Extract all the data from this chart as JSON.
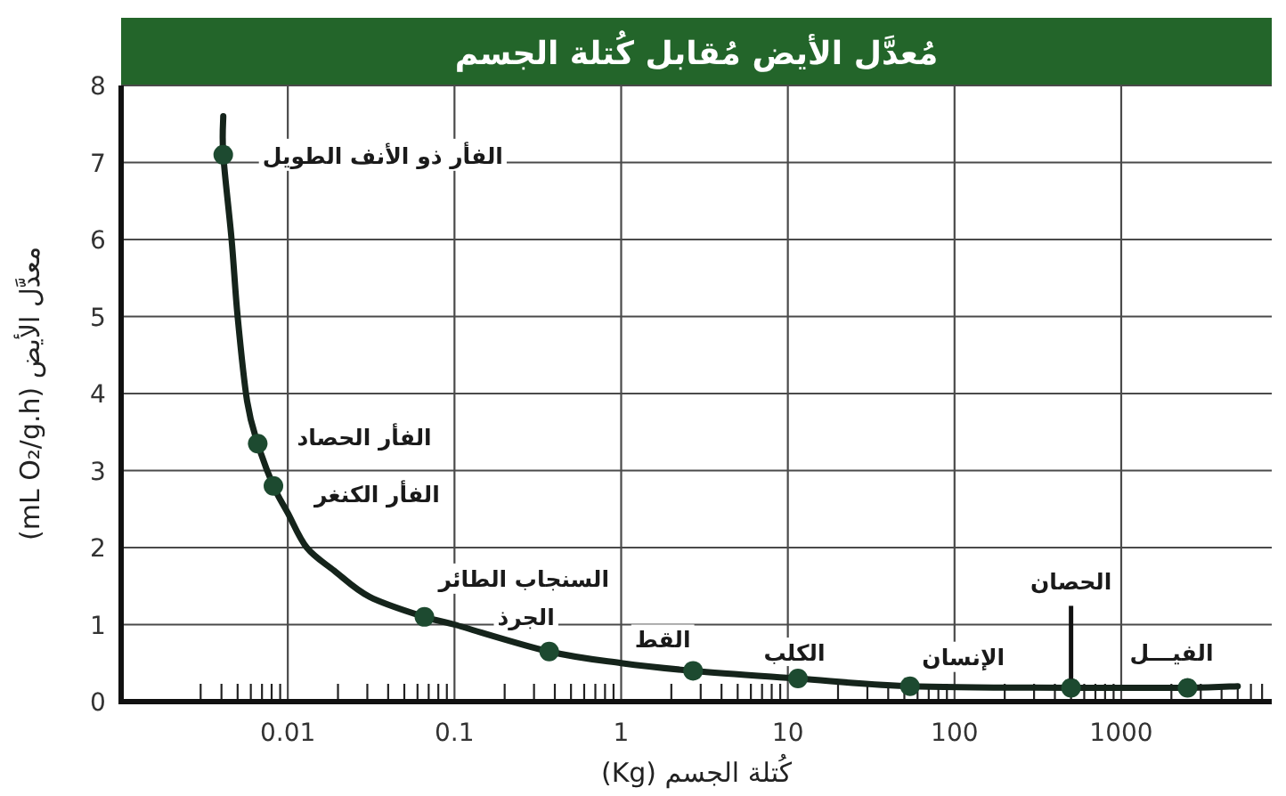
{
  "chart_data": {
    "type": "scatter",
    "title": "مُعدَّل الأيض مُقابل كُتلة الجسم",
    "xlabel": "كُتلة الجسم (Kg)",
    "ylabel": "معدَّل الأيض (mL O₂/g.h)",
    "log": "x",
    "xlim": [
      0.001,
      8000
    ],
    "xticks": [
      {
        "value": 0.003,
        "label": null
      },
      {
        "value": 0.004,
        "label": null
      },
      {
        "value": 0.005,
        "label": null
      },
      {
        "value": 0.006,
        "label": null
      },
      {
        "value": 0.007,
        "label": null
      },
      {
        "value": 0.008,
        "label": null
      },
      {
        "value": 0.009,
        "label": null
      },
      0.01,
      {
        "value": 0.02,
        "label": null
      },
      {
        "value": 0.03,
        "label": null
      },
      {
        "value": 0.04,
        "label": null
      },
      {
        "value": 0.05,
        "label": null
      },
      {
        "value": 0.06,
        "label": null
      },
      {
        "value": 0.07,
        "label": null
      },
      {
        "value": 0.08,
        "label": null
      },
      {
        "value": 0.09,
        "label": null
      },
      0.1,
      {
        "value": 0.2,
        "label": null
      },
      {
        "value": 0.3,
        "label": null
      },
      {
        "value": 0.4,
        "label": null
      },
      {
        "value": 0.5,
        "label": null
      },
      {
        "value": 0.6,
        "label": null
      },
      {
        "value": 0.7,
        "label": null
      },
      {
        "value": 0.8,
        "label": null
      },
      {
        "value": 0.9,
        "label": null
      },
      1,
      {
        "value": 2,
        "label": null
      },
      {
        "value": 3,
        "label": null
      },
      {
        "value": 4,
        "label": null
      },
      {
        "value": 5,
        "label": null
      },
      {
        "value": 6,
        "label": null
      },
      {
        "value": 7,
        "label": null
      },
      {
        "value": 8,
        "label": null
      },
      {
        "value": 9,
        "label": null
      },
      10,
      {
        "value": 20,
        "label": null
      },
      {
        "value": 30,
        "label": null
      },
      {
        "value": 40,
        "label": null
      },
      {
        "value": 50,
        "label": null
      },
      {
        "value": 60,
        "label": null
      },
      {
        "value": 70,
        "label": null
      },
      {
        "value": 80,
        "label": null
      },
      {
        "value": 90,
        "label": null
      },
      100,
      {
        "value": 200,
        "label": null
      },
      {
        "value": 300,
        "label": null
      },
      {
        "value": 400,
        "label": null
      },
      {
        "value": 500,
        "label": null
      },
      {
        "value": 600,
        "label": null
      },
      {
        "value": 700,
        "label": null
      },
      {
        "value": 800,
        "label": null
      },
      {
        "value": 900,
        "label": null
      },
      1000,
      {
        "value": 2000,
        "label": null
      },
      {
        "value": 3000,
        "label": null
      },
      {
        "value": 4000,
        "label": null
      },
      {
        "value": 5000,
        "label": null
      },
      {
        "value": 6000,
        "label": null
      },
      {
        "value": 7000,
        "label": null
      }
    ],
    "ylim": [
      0,
      8
    ],
    "yticks": [
      0,
      1,
      2,
      3,
      4,
      5,
      6,
      7,
      8
    ],
    "grid": true,
    "series": [
      {
        "type": "line",
        "color": "#15241b",
        "marker": "none",
        "x": [
          0.0041,
          0.0041,
          0.0046,
          0.005,
          0.0057,
          0.0066,
          0.0082,
          0.01,
          0.013,
          0.019,
          0.031,
          0.066,
          0.1,
          0.37,
          1,
          2.7,
          11.5,
          54,
          500,
          2500,
          5000
        ],
        "values": [
          7.6,
          7.1,
          6,
          5,
          3.9,
          3.35,
          2.8,
          2.45,
          2,
          1.7,
          1.36,
          1.1,
          1,
          0.65,
          0.5,
          0.4,
          0.3,
          0.2,
          0.18,
          0.18,
          0.2
        ]
      },
      {
        "color": "#1d4a30",
        "marker": "circle",
        "x": [
          0.0041,
          0.0066,
          0.0082,
          0.066,
          0.37,
          2.7,
          11.5,
          54,
          500,
          2500
        ],
        "values": [
          7.1,
          3.35,
          2.8,
          1.1,
          0.65,
          0.4,
          0.3,
          0.2,
          0.18,
          0.18
        ]
      }
    ],
    "annotations": [
      {
        "text": "الفأر ذو الأنف الطويل",
        "x": 0.0041,
        "y": 7.1
      },
      {
        "text": "الفأر الحصاد",
        "x": 0.0066,
        "y": 3.35
      },
      {
        "text": "الفأر الكنغر",
        "x": 0.0082,
        "y": 2.8
      },
      {
        "text": "السنجاب الطائر",
        "x": 0.066,
        "y": 1.1
      },
      {
        "text": "الجرذ",
        "x": 0.37,
        "y": 0.65
      },
      {
        "text": "القط",
        "x": 2.7,
        "y": 0.4
      },
      {
        "text": "الكلب",
        "x": 11.5,
        "y": 0.3
      },
      {
        "text": "الإنسان",
        "x": 54,
        "y": 0.2
      },
      {
        "text": "الحصان",
        "x": 500,
        "y": 0.18
      },
      {
        "text": "الفيـــل",
        "x": 2500,
        "y": 0.18
      }
    ]
  }
}
